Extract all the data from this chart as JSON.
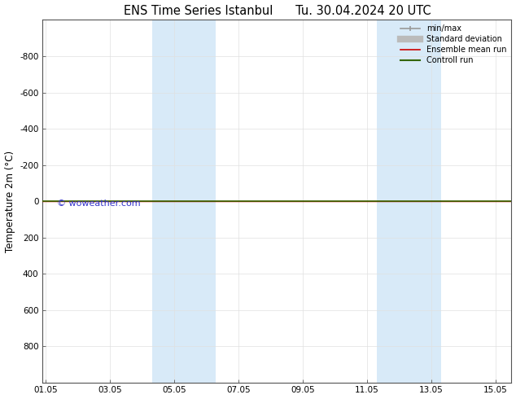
{
  "title": "ENS Time Series Istanbul      Tu. 30.04.2024 20 UTC",
  "ylabel": "Temperature 2m (°C)",
  "watermark": "© woweather.com",
  "xtick_labels": [
    "01.05",
    "03.05",
    "05.05",
    "07.05",
    "09.05",
    "11.05",
    "13.05",
    "15.05"
  ],
  "xtick_positions": [
    0,
    2,
    4,
    6,
    8,
    10,
    12,
    14
  ],
  "xlim": [
    -0.1,
    14.5
  ],
  "ylim": [
    1000,
    -1000
  ],
  "ytick_positions": [
    800,
    600,
    400,
    200,
    0,
    -200,
    -400,
    -600,
    -800,
    -1000
  ],
  "ytick_labels": [
    "800",
    "600",
    "400",
    "200",
    "0",
    "-200",
    "-400",
    "-600",
    "-800",
    ""
  ],
  "background_color": "#ffffff",
  "plot_bg_color": "#ffffff",
  "grid_color": "#e0e0e0",
  "shaded_bands": [
    {
      "x_start": 3.3,
      "x_end": 5.3
    },
    {
      "x_start": 10.3,
      "x_end": 12.3
    }
  ],
  "shaded_color": "#d8eaf8",
  "green_line_y": 0,
  "green_line_color": "#336600",
  "red_line_color": "#cc0000",
  "legend_items": [
    {
      "label": "min/max",
      "color": "#999999",
      "lw": 1.2,
      "ls": "-"
    },
    {
      "label": "Standard deviation",
      "color": "#bbbbbb",
      "lw": 6,
      "ls": "-"
    },
    {
      "label": "Ensemble mean run",
      "color": "#cc0000",
      "lw": 1.2,
      "ls": "-"
    },
    {
      "label": "Controll run",
      "color": "#336600",
      "lw": 1.5,
      "ls": "-"
    }
  ],
  "title_fontsize": 10.5,
  "tick_fontsize": 7.5,
  "ylabel_fontsize": 8.5,
  "watermark_fontsize": 8,
  "watermark_color": "#3333cc"
}
